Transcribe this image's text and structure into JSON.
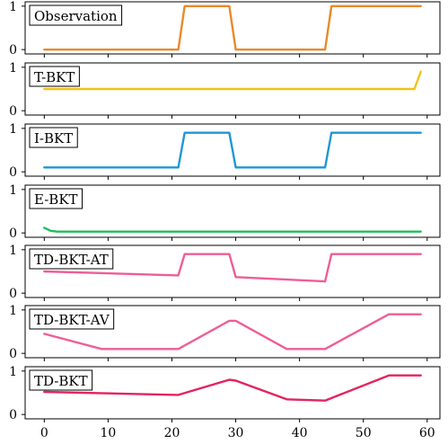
{
  "chart_data": {
    "type": "line",
    "xlabel": "",
    "ylabel": "",
    "x_ticks": [
      0,
      10,
      20,
      30,
      40,
      50,
      60
    ],
    "xlim": [
      -3,
      62
    ],
    "ylim": [
      -0.1,
      1.1
    ],
    "y_ticks": [
      0,
      1
    ],
    "grid": false,
    "panels": [
      {
        "title": "Observation",
        "color": "#e8892b",
        "points": [
          [
            0,
            0
          ],
          [
            21,
            0
          ],
          [
            22,
            1
          ],
          [
            29,
            1
          ],
          [
            30,
            0
          ],
          [
            44,
            0
          ],
          [
            45,
            1
          ],
          [
            59,
            1
          ]
        ]
      },
      {
        "title": "T-BKT",
        "color": "#f2c21b",
        "points": [
          [
            0,
            0.5
          ],
          [
            58,
            0.5
          ],
          [
            59,
            0.9
          ]
        ]
      },
      {
        "title": "I-BKT",
        "color": "#1f97d4",
        "points": [
          [
            0,
            0.1
          ],
          [
            21,
            0.1
          ],
          [
            22,
            0.9
          ],
          [
            29,
            0.9
          ],
          [
            30,
            0.1
          ],
          [
            44,
            0.1
          ],
          [
            45,
            0.9
          ],
          [
            59,
            0.9
          ]
        ]
      },
      {
        "title": "E-BKT",
        "color": "#1fbf5c",
        "points": [
          [
            0,
            0.12
          ],
          [
            1,
            0.05
          ],
          [
            2,
            0.03
          ],
          [
            59,
            0.03
          ]
        ]
      },
      {
        "title": "TD-BKT-AT",
        "color": "#ee5e96",
        "points": [
          [
            0,
            0.5
          ],
          [
            21,
            0.41
          ],
          [
            22,
            0.9
          ],
          [
            29,
            0.9
          ],
          [
            30,
            0.37
          ],
          [
            44,
            0.27
          ],
          [
            45,
            0.9
          ],
          [
            59,
            0.9
          ]
        ]
      },
      {
        "title": "TD-BKT-AV",
        "color": "#ee5e96",
        "points": [
          [
            0,
            0.45
          ],
          [
            9,
            0.1
          ],
          [
            21,
            0.1
          ],
          [
            29,
            0.75
          ],
          [
            30,
            0.75
          ],
          [
            38,
            0.1
          ],
          [
            44,
            0.1
          ],
          [
            54,
            0.9
          ],
          [
            59,
            0.9
          ]
        ]
      },
      {
        "title": "TD-BKT",
        "color": "#e3245f",
        "points": [
          [
            0,
            0.52
          ],
          [
            21,
            0.45
          ],
          [
            29,
            0.8
          ],
          [
            30,
            0.78
          ],
          [
            38,
            0.35
          ],
          [
            44,
            0.32
          ],
          [
            54,
            0.9
          ],
          [
            59,
            0.9
          ]
        ]
      }
    ]
  }
}
